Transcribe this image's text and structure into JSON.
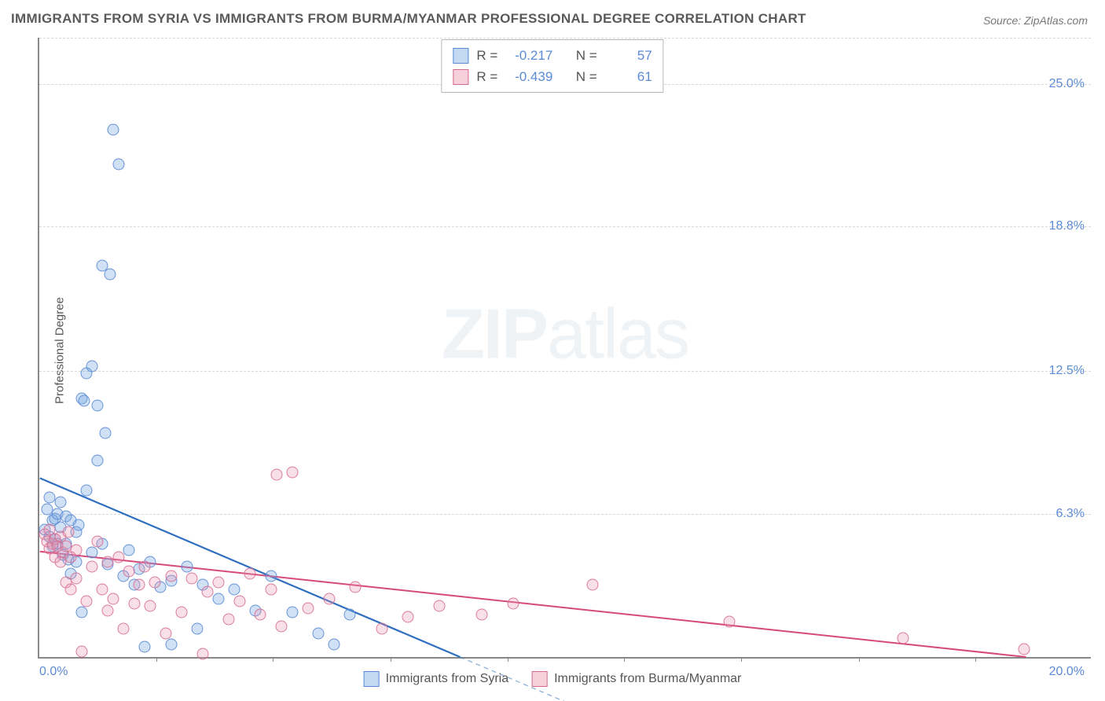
{
  "title": "IMMIGRANTS FROM SYRIA VS IMMIGRANTS FROM BURMA/MYANMAR PROFESSIONAL DEGREE CORRELATION CHART",
  "source": "Source: ZipAtlas.com",
  "y_axis_label": "Professional Degree",
  "watermark": {
    "bold": "ZIP",
    "rest": "atlas"
  },
  "chart": {
    "type": "scatter",
    "background_color": "#ffffff",
    "grid_color": "#d8d8d8",
    "axis_color": "#888888",
    "xlim": [
      0.0,
      20.0
    ],
    "ylim": [
      0.0,
      27.0
    ],
    "x_ticks_labeled": [
      {
        "value": 0.0,
        "label": "0.0%"
      },
      {
        "value": 20.0,
        "label": "20.0%"
      }
    ],
    "x_tick_marks": [
      2.22,
      4.44,
      6.67,
      8.89,
      11.11,
      13.33,
      15.56,
      17.78
    ],
    "y_ticks": [
      {
        "value": 6.3,
        "label": "6.3%"
      },
      {
        "value": 12.5,
        "label": "12.5%"
      },
      {
        "value": 18.8,
        "label": "18.8%"
      },
      {
        "value": 25.0,
        "label": "25.0%"
      }
    ],
    "gridlines_y": [
      6.3,
      12.5,
      18.8,
      25.0,
      27.0
    ],
    "series": [
      {
        "name": "Immigrants from Syria",
        "color_fill": "rgba(120,170,225,0.35)",
        "color_stroke": "#5b8bd4",
        "marker_class": "pb",
        "R": "-0.217",
        "N": "57",
        "trend": {
          "x1": 0.0,
          "y1": 7.8,
          "x2": 8.0,
          "y2": 0.0,
          "stroke": "#2e6fbf",
          "width": 2.2,
          "dash_ext": true
        },
        "points": [
          [
            0.1,
            5.6
          ],
          [
            0.15,
            6.5
          ],
          [
            0.2,
            7.0
          ],
          [
            0.2,
            5.3
          ],
          [
            0.25,
            4.9
          ],
          [
            0.25,
            6.0
          ],
          [
            0.3,
            5.2
          ],
          [
            0.3,
            6.1
          ],
          [
            0.35,
            6.3
          ],
          [
            0.35,
            5.0
          ],
          [
            0.4,
            6.8
          ],
          [
            0.4,
            5.7
          ],
          [
            0.45,
            4.5
          ],
          [
            0.5,
            6.2
          ],
          [
            0.5,
            5.0
          ],
          [
            0.55,
            4.3
          ],
          [
            0.6,
            6.0
          ],
          [
            0.6,
            3.7
          ],
          [
            0.7,
            5.5
          ],
          [
            0.7,
            4.2
          ],
          [
            0.75,
            5.8
          ],
          [
            0.8,
            2.0
          ],
          [
            0.8,
            11.3
          ],
          [
            0.85,
            11.2
          ],
          [
            0.9,
            12.4
          ],
          [
            0.9,
            7.3
          ],
          [
            1.0,
            12.7
          ],
          [
            1.0,
            4.6
          ],
          [
            1.1,
            11.0
          ],
          [
            1.1,
            8.6
          ],
          [
            1.2,
            17.1
          ],
          [
            1.2,
            5.0
          ],
          [
            1.25,
            9.8
          ],
          [
            1.3,
            4.1
          ],
          [
            1.35,
            16.7
          ],
          [
            1.4,
            23.0
          ],
          [
            1.5,
            21.5
          ],
          [
            1.6,
            3.6
          ],
          [
            1.7,
            4.7
          ],
          [
            1.8,
            3.2
          ],
          [
            1.9,
            3.9
          ],
          [
            2.0,
            0.5
          ],
          [
            2.1,
            4.2
          ],
          [
            2.3,
            3.1
          ],
          [
            2.5,
            3.4
          ],
          [
            2.5,
            0.6
          ],
          [
            2.8,
            4.0
          ],
          [
            3.0,
            1.3
          ],
          [
            3.1,
            3.2
          ],
          [
            3.4,
            2.6
          ],
          [
            3.7,
            3.0
          ],
          [
            4.1,
            2.1
          ],
          [
            4.4,
            3.6
          ],
          [
            4.8,
            2.0
          ],
          [
            5.3,
            1.1
          ],
          [
            5.6,
            0.6
          ],
          [
            5.9,
            1.9
          ]
        ]
      },
      {
        "name": "Immigrants from Burma/Myanmar",
        "color_fill": "rgba(235,150,175,0.30)",
        "color_stroke": "#d46a8f",
        "marker_class": "pp",
        "R": "-0.439",
        "N": "61",
        "trend": {
          "x1": 0.0,
          "y1": 4.6,
          "x2": 20.0,
          "y2": -0.3,
          "stroke": "#d64a7b",
          "width": 2.0,
          "dash_ext": false
        },
        "points": [
          [
            0.1,
            5.4
          ],
          [
            0.15,
            5.1
          ],
          [
            0.2,
            5.6
          ],
          [
            0.2,
            4.8
          ],
          [
            0.25,
            5.0
          ],
          [
            0.3,
            5.2
          ],
          [
            0.3,
            4.4
          ],
          [
            0.35,
            4.9
          ],
          [
            0.4,
            4.2
          ],
          [
            0.4,
            5.3
          ],
          [
            0.45,
            4.6
          ],
          [
            0.5,
            3.3
          ],
          [
            0.5,
            4.9
          ],
          [
            0.55,
            5.5
          ],
          [
            0.6,
            3.0
          ],
          [
            0.6,
            4.4
          ],
          [
            0.7,
            3.5
          ],
          [
            0.7,
            4.7
          ],
          [
            0.8,
            0.3
          ],
          [
            0.9,
            2.5
          ],
          [
            1.0,
            4.0
          ],
          [
            1.1,
            5.1
          ],
          [
            1.2,
            3.0
          ],
          [
            1.3,
            2.1
          ],
          [
            1.3,
            4.2
          ],
          [
            1.4,
            2.6
          ],
          [
            1.5,
            4.4
          ],
          [
            1.6,
            1.3
          ],
          [
            1.7,
            3.8
          ],
          [
            1.8,
            2.4
          ],
          [
            1.9,
            3.2
          ],
          [
            2.0,
            4.0
          ],
          [
            2.1,
            2.3
          ],
          [
            2.2,
            3.3
          ],
          [
            2.4,
            1.1
          ],
          [
            2.5,
            3.6
          ],
          [
            2.7,
            2.0
          ],
          [
            2.9,
            3.5
          ],
          [
            3.1,
            0.2
          ],
          [
            3.2,
            2.9
          ],
          [
            3.4,
            3.3
          ],
          [
            3.6,
            1.7
          ],
          [
            3.8,
            2.5
          ],
          [
            4.0,
            3.7
          ],
          [
            4.2,
            1.9
          ],
          [
            4.4,
            3.0
          ],
          [
            4.5,
            8.0
          ],
          [
            4.6,
            1.4
          ],
          [
            4.8,
            8.1
          ],
          [
            5.1,
            2.2
          ],
          [
            5.5,
            2.6
          ],
          [
            6.0,
            3.1
          ],
          [
            6.5,
            1.3
          ],
          [
            7.0,
            1.8
          ],
          [
            7.6,
            2.3
          ],
          [
            8.4,
            1.9
          ],
          [
            9.0,
            2.4
          ],
          [
            10.5,
            3.2
          ],
          [
            13.1,
            1.6
          ],
          [
            16.4,
            0.9
          ],
          [
            18.7,
            0.4
          ]
        ]
      }
    ]
  },
  "legend_top_labels": {
    "R": "R =",
    "N": "N ="
  },
  "legend_bottom": [
    {
      "swatch": "sw-blue",
      "label": "Immigrants from Syria"
    },
    {
      "swatch": "sw-pink",
      "label": "Immigrants from Burma/Myanmar"
    }
  ]
}
